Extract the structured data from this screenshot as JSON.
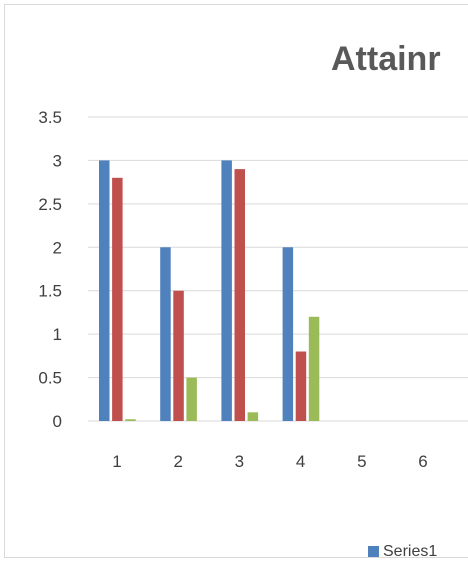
{
  "chart_data": {
    "type": "bar",
    "title": "Attainr",
    "categories": [
      "1",
      "2",
      "3",
      "4",
      "5",
      "6"
    ],
    "series": [
      {
        "name": "Series1",
        "color": "#4F81BD",
        "values": [
          3,
          2,
          3,
          2,
          null,
          null
        ]
      },
      {
        "color": "#C0504D",
        "values": [
          2.8,
          1.5,
          2.9,
          0.8,
          null,
          null
        ]
      },
      {
        "color": "#9BBB59",
        "values": [
          0.02,
          0.5,
          0.1,
          1.2,
          null,
          null
        ]
      }
    ],
    "y_ticks": [
      "0",
      "0.5",
      "1",
      "1.5",
      "2",
      "2.5",
      "3",
      "3.5"
    ],
    "ylim": [
      0,
      3.5
    ],
    "grid": true,
    "legend_position": "bottom-right",
    "legend_shown": [
      "Series1"
    ],
    "colors": {
      "gridline": "#D9D9D9",
      "text": "#404040",
      "title": "#595959"
    }
  }
}
